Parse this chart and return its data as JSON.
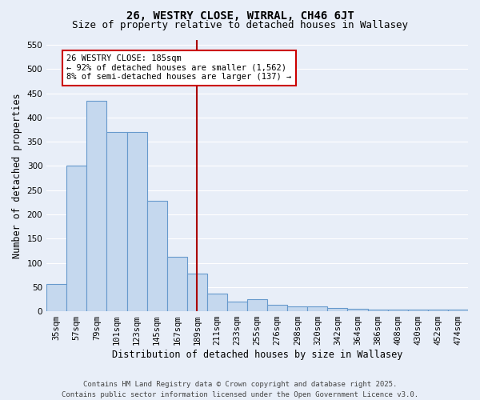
{
  "title": "26, WESTRY CLOSE, WIRRAL, CH46 6JT",
  "subtitle": "Size of property relative to detached houses in Wallasey",
  "xlabel": "Distribution of detached houses by size in Wallasey",
  "ylabel": "Number of detached properties",
  "categories": [
    "35sqm",
    "57sqm",
    "79sqm",
    "101sqm",
    "123sqm",
    "145sqm",
    "167sqm",
    "189sqm",
    "211sqm",
    "233sqm",
    "255sqm",
    "276sqm",
    "298sqm",
    "320sqm",
    "342sqm",
    "364sqm",
    "386sqm",
    "408sqm",
    "430sqm",
    "452sqm",
    "474sqm"
  ],
  "values": [
    57,
    300,
    435,
    370,
    370,
    228,
    113,
    78,
    37,
    20,
    25,
    14,
    10,
    10,
    7,
    5,
    4,
    4,
    3,
    3,
    3
  ],
  "bar_color": "#c5d8ee",
  "bar_edgecolor": "#6699cc",
  "marker_index": 7,
  "annotation_line1": "26 WESTRY CLOSE: 185sqm",
  "annotation_line2": "← 92% of detached houses are smaller (1,562)",
  "annotation_line3": "8% of semi-detached houses are larger (137) →",
  "annotation_box_color": "#ffffff",
  "annotation_box_edgecolor": "#cc0000",
  "vline_color": "#aa0000",
  "ylim": [
    0,
    560
  ],
  "yticks": [
    0,
    50,
    100,
    150,
    200,
    250,
    300,
    350,
    400,
    450,
    500,
    550
  ],
  "bg_color": "#e8eef8",
  "plot_bg_color": "#e8eef8",
  "grid_color": "#ffffff",
  "footer": "Contains HM Land Registry data © Crown copyright and database right 2025.\nContains public sector information licensed under the Open Government Licence v3.0.",
  "title_fontsize": 10,
  "subtitle_fontsize": 9,
  "xlabel_fontsize": 8.5,
  "ylabel_fontsize": 8.5,
  "tick_fontsize": 7.5,
  "annotation_fontsize": 7.5,
  "footer_fontsize": 6.5
}
